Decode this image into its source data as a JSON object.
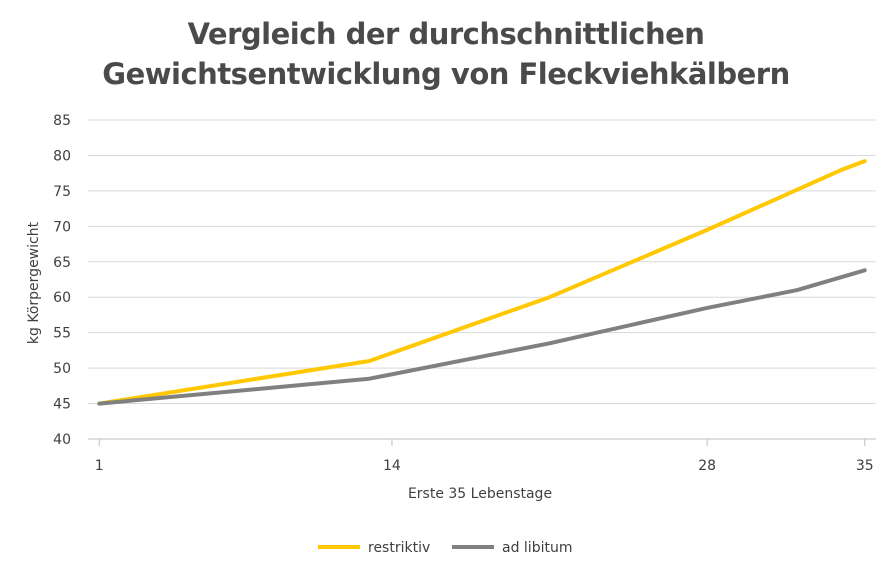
{
  "chart_data": {
    "type": "line",
    "title_lines": [
      "Vergleich der durchschnittlichen",
      "Gewichtsentwicklung von Fleckviehkälbern"
    ],
    "xlabel": "Erste 35 Lebenstage",
    "ylabel": "kg Körpergewicht",
    "xlim": [
      0.5,
      35.5
    ],
    "ylim": [
      40,
      85
    ],
    "x_ticks": [
      1,
      14,
      28,
      35
    ],
    "y_ticks": [
      40,
      45,
      50,
      55,
      60,
      65,
      70,
      75,
      80,
      85
    ],
    "grid": true,
    "legend_position": "bottom",
    "series": [
      {
        "name": "restriktiv",
        "color": "#FFC800",
        "x": [
          1,
          13,
          21,
          28,
          34,
          35
        ],
        "y": [
          45,
          51,
          60,
          69.5,
          78,
          79.2
        ]
      },
      {
        "name": "ad libitum",
        "color": "#808080",
        "x": [
          1,
          13,
          21,
          28,
          32,
          35
        ],
        "y": [
          45,
          48.5,
          53.5,
          58.5,
          61,
          63.8
        ]
      }
    ]
  }
}
